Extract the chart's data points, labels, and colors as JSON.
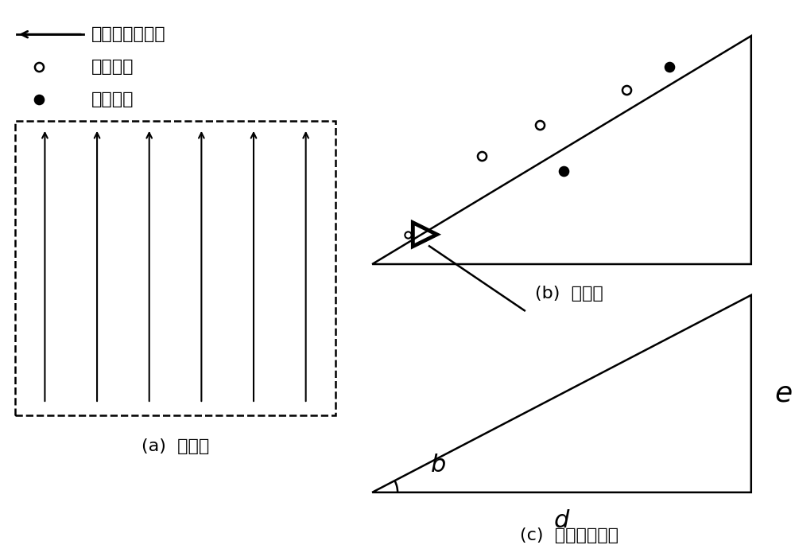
{
  "bg_color": "#ffffff",
  "legend_arrow_label": "无人机飞播路线",
  "legend_open_label": "垂直向里",
  "legend_filled_label": "垂直向外",
  "label_a": "(a)  俦视图",
  "label_b_title": "(b)  侧视图",
  "label_c": "(c)  高度调整计算",
  "label_e": "e",
  "label_b_angle": "b",
  "label_d": "d",
  "font_size": 16,
  "font_size_labels": 22
}
